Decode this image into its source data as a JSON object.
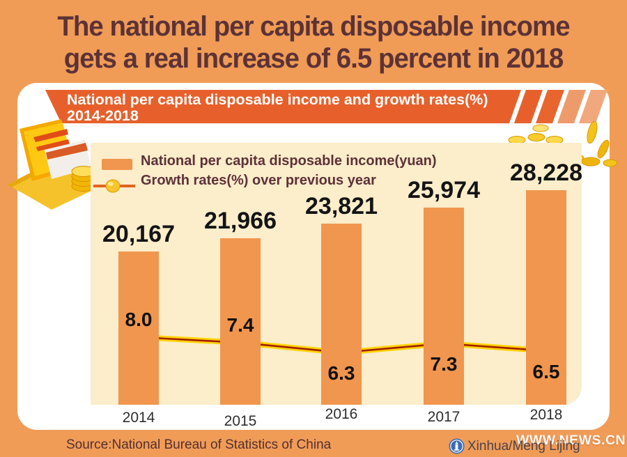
{
  "title": {
    "line1": "The national per capita disposable income",
    "line2": "gets a real increase of 6.5 percent in 2018"
  },
  "banner": {
    "line1": "National per capita disposable income and growth rates(%)",
    "line2": "2014-2018"
  },
  "legend": {
    "bar_label": "National per capita disposable income(yuan)",
    "line_label": "Growth rates(%) over previous year"
  },
  "chart_data": {
    "type": "bar",
    "categories": [
      "2014",
      "2015",
      "2016",
      "2017",
      "2018"
    ],
    "series": [
      {
        "name": "National per capita disposable income(yuan)",
        "type": "bar",
        "values": [
          20167,
          21966,
          23821,
          25974,
          28228
        ],
        "value_labels": [
          "20,167",
          "21,966",
          "23,821",
          "25,974",
          "28,228"
        ],
        "color": "#F0964E"
      },
      {
        "name": "Growth rates(%) over previous year",
        "type": "line",
        "values": [
          8.0,
          7.4,
          6.3,
          7.3,
          6.5
        ],
        "value_labels": [
          "8.0",
          "7.4",
          "6.3",
          "7.3",
          "6.5"
        ],
        "line_color": "#FFD400",
        "line_core_color": "#A32000",
        "marker_color": "#F7C52D"
      }
    ],
    "title": "National per capita disposable income and growth rates(%) 2014-2018",
    "xlabel": "",
    "ylabel": "",
    "grid": false,
    "legend_position": "top-left inside plot"
  },
  "footer": {
    "source": "Source:National Bureau of Statistics of China",
    "website": "WWW.NEWS.CN",
    "credit": "Xinhua/Meng Lijing"
  },
  "icons": {
    "wallet": "wallet-with-card-and-coins-icon",
    "coins": "gold-coin-pile-icon",
    "logo": "xinhua-logo-icon"
  },
  "colors": {
    "background": "#F09C57",
    "card": "#FFFFFF",
    "panel": "#FCEDCB",
    "banner": "#E7602B",
    "banner_stripe_light": "#F0A87C",
    "bar": "#F0964E",
    "title_text": "#5D3236",
    "legend_text": "#5E3137",
    "value_text": "#141414",
    "source_text": "#542F30",
    "line_yellow": "#FFD400",
    "line_core": "#A32000",
    "coin_gold": "#F5C32A"
  }
}
